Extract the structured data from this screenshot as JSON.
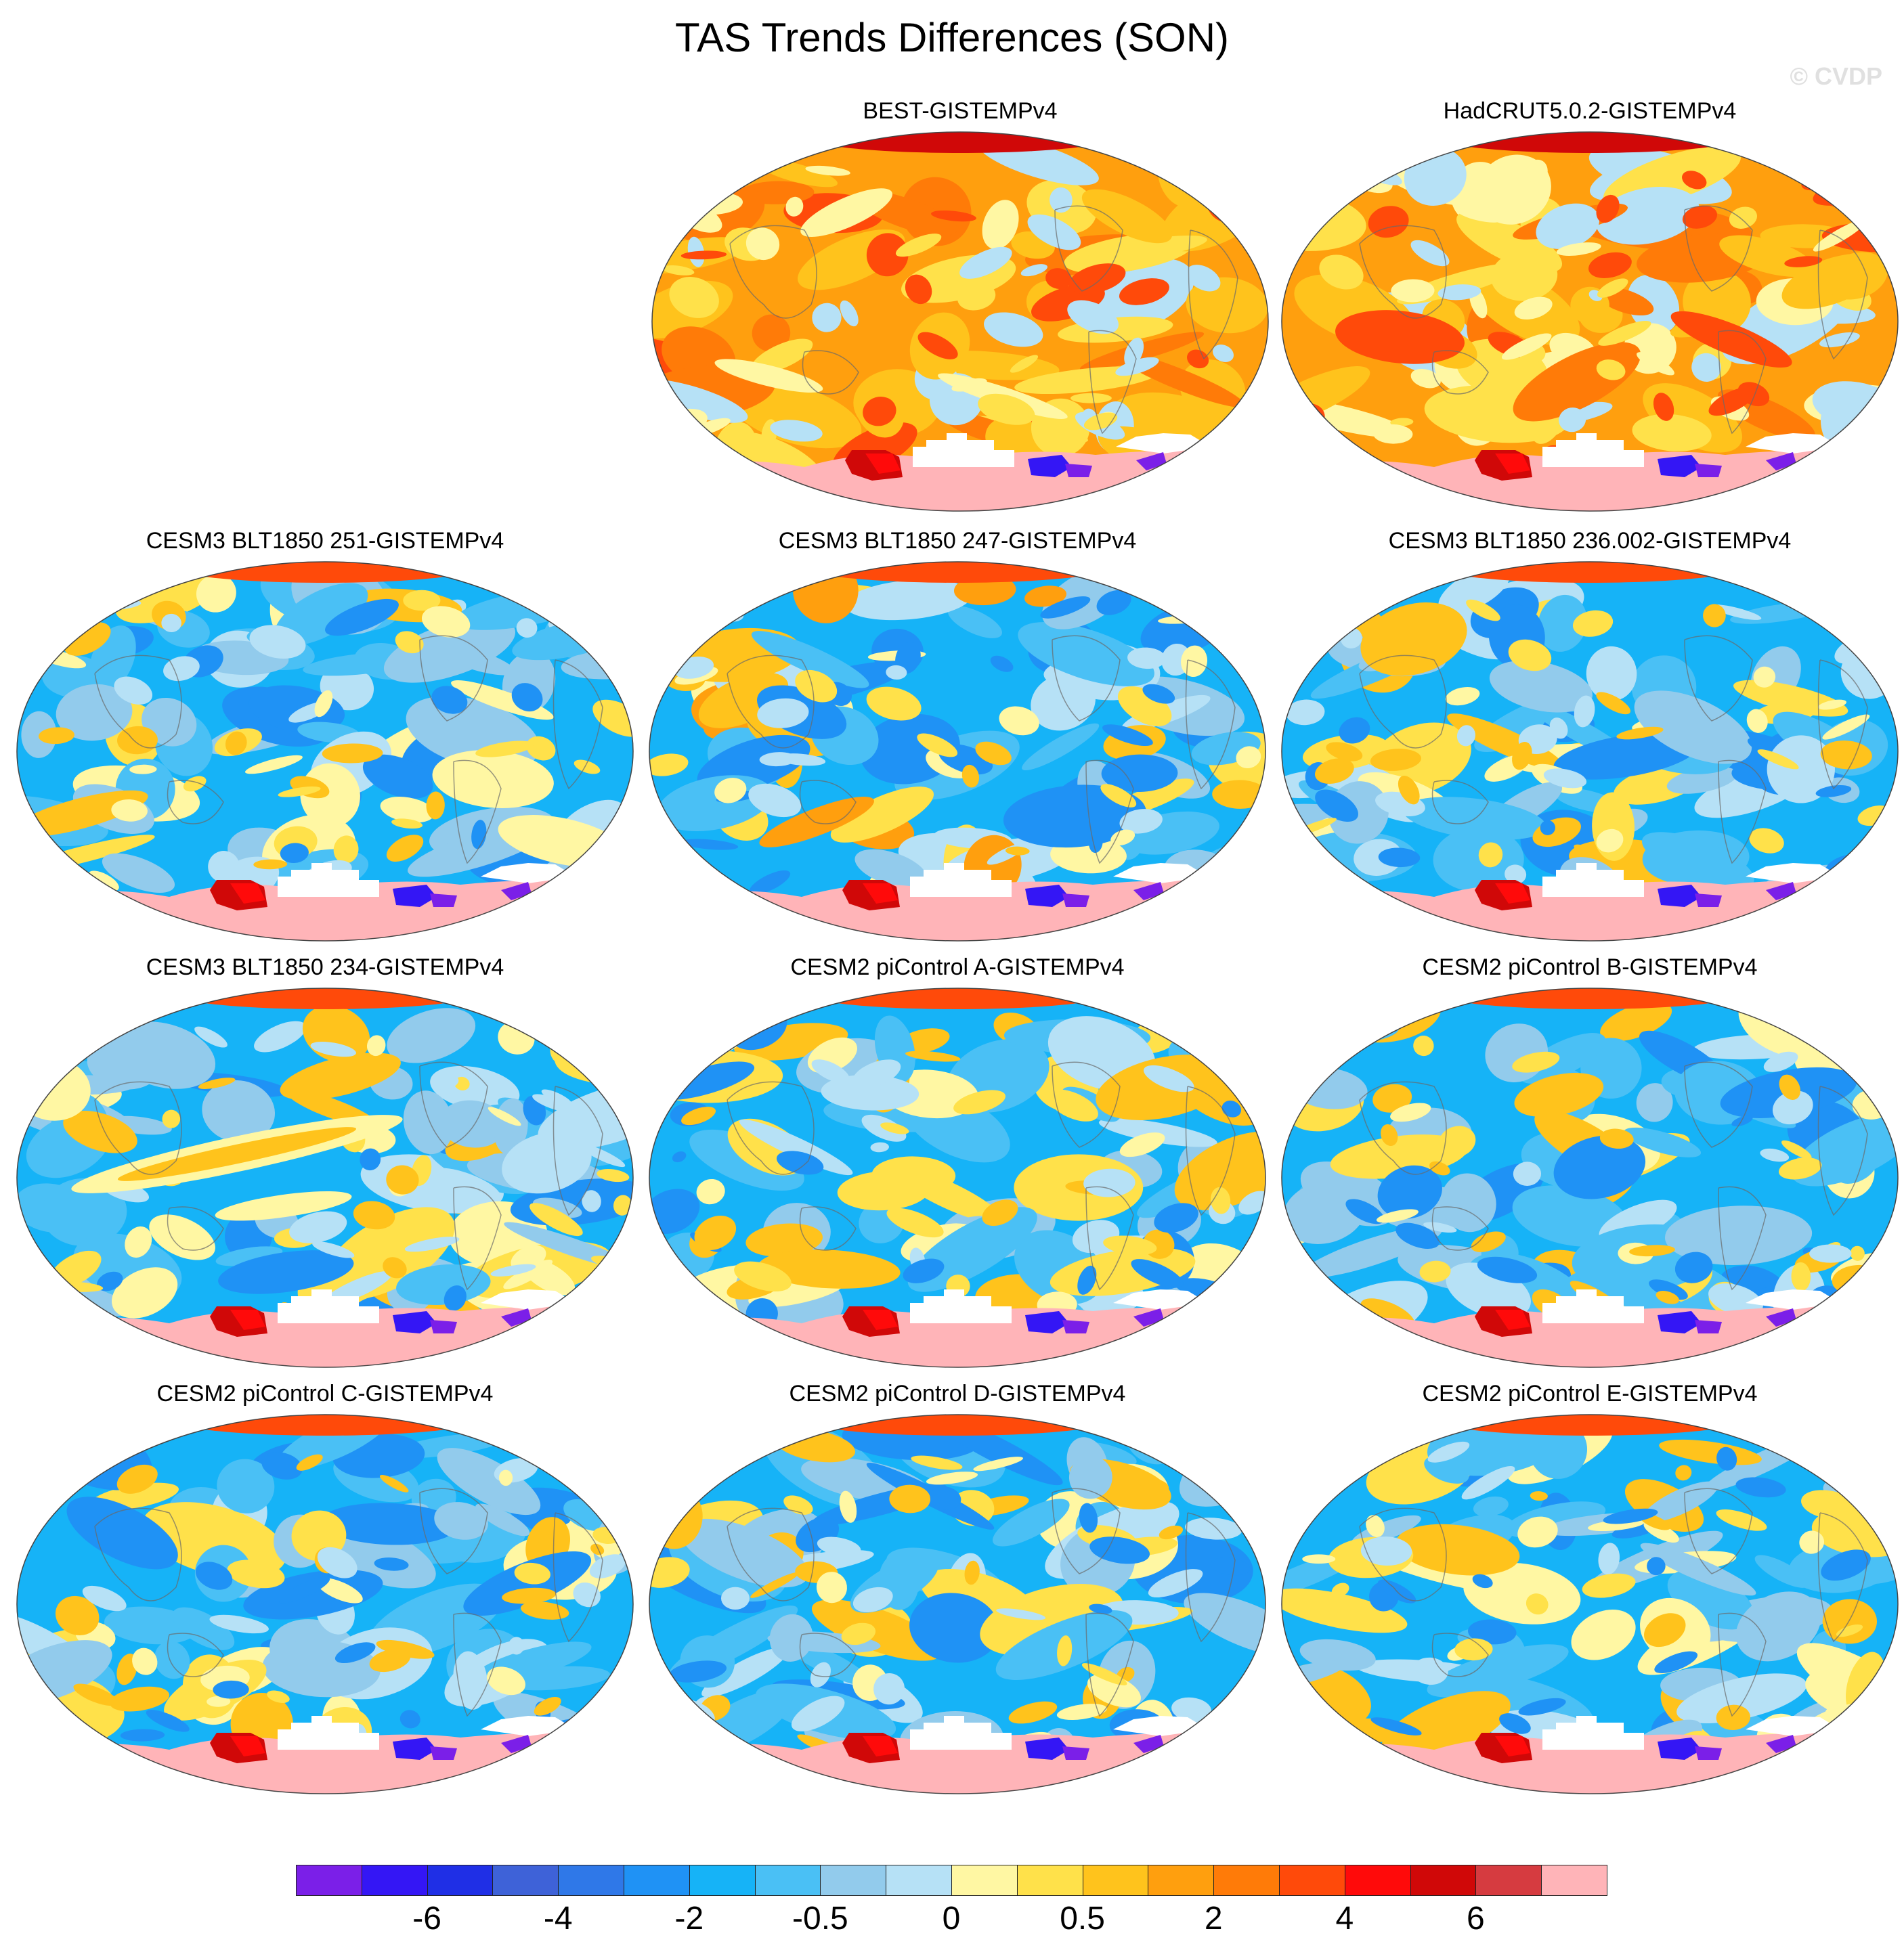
{
  "title": "TAS Trends Differences (SON)",
  "watermark": "© CVDP",
  "panels": [
    {
      "title": "BEST-GISTEMPv4",
      "pattern": "warm"
    },
    {
      "title": "HadCRUT5.0.2-GISTEMPv4",
      "pattern": "warm2"
    },
    {
      "title": "CESM3 BLT1850 251-GISTEMPv4",
      "pattern": "cool"
    },
    {
      "title": "CESM3 BLT1850 247-GISTEMPv4",
      "pattern": "mixed"
    },
    {
      "title": "CESM3 BLT1850 236.002-GISTEMPv4",
      "pattern": "cool"
    },
    {
      "title": "CESM3 BLT1850 234-GISTEMPv4",
      "pattern": "cool2"
    },
    {
      "title": "CESM2 piControl A-GISTEMPv4",
      "pattern": "cool"
    },
    {
      "title": "CESM2 piControl B-GISTEMPv4",
      "pattern": "cool"
    },
    {
      "title": "CESM2 piControl C-GISTEMPv4",
      "pattern": "cool"
    },
    {
      "title": "CESM2 piControl D-GISTEMPv4",
      "pattern": "cool"
    },
    {
      "title": "CESM2 piControl E-GISTEMPv4",
      "pattern": "cool"
    }
  ],
  "colorbar": {
    "colors": [
      "#7b1fe8",
      "#3416f5",
      "#1f2fe6",
      "#3e62d8",
      "#2f78e8",
      "#1f92f5",
      "#16b3f7",
      "#4ac0f5",
      "#92cbec",
      "#b6e1f6",
      "#fff7a3",
      "#ffe14a",
      "#ffc31c",
      "#ff9f0e",
      "#ff7b08",
      "#ff4a0a",
      "#ff0a0a",
      "#d00808",
      "#d63b40",
      "#ffb4b8"
    ],
    "labels": [
      "-6",
      "-4",
      "-2",
      "-0.5",
      "0",
      "0.5",
      "2",
      "4",
      "6"
    ]
  }
}
